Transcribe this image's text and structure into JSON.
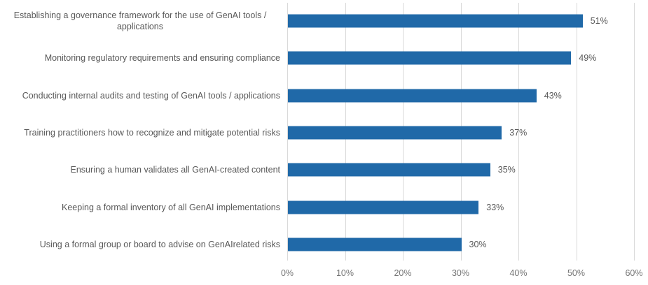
{
  "chart_data": {
    "type": "bar",
    "orientation": "horizontal",
    "title": "",
    "xlabel": "",
    "ylabel": "",
    "categories": [
      "Establishing a governance framework for the use of GenAI tools / applications",
      "Monitoring regulatory requirements and ensuring compliance",
      "Conducting internal audits and testing of GenAI tools / applications",
      "Training practitioners how to recognize and mitigate potential risks",
      "Ensuring a human validates all GenAI-created content",
      "Keeping a formal inventory of all GenAI implementations",
      "Using a formal group or board to advise on GenAIrelated risks"
    ],
    "values": [
      51,
      49,
      43,
      37,
      35,
      33,
      30
    ],
    "value_labels": [
      "51%",
      "49%",
      "43%",
      "37%",
      "35%",
      "33%",
      "30%"
    ],
    "xlim": [
      0,
      60
    ],
    "x_ticks": [
      "0%",
      "10%",
      "20%",
      "30%",
      "40%",
      "50%",
      "60%"
    ],
    "x_tick_values": [
      0,
      10,
      20,
      30,
      40,
      50,
      60
    ],
    "grid": "vertical-only",
    "legend": "none",
    "colors": {
      "bar": "#2069a8",
      "category_label": "#595959",
      "value_label": "#595959",
      "tick_label": "#757575",
      "gridline": "#d9d9d9",
      "background": "#ffffff"
    }
  }
}
